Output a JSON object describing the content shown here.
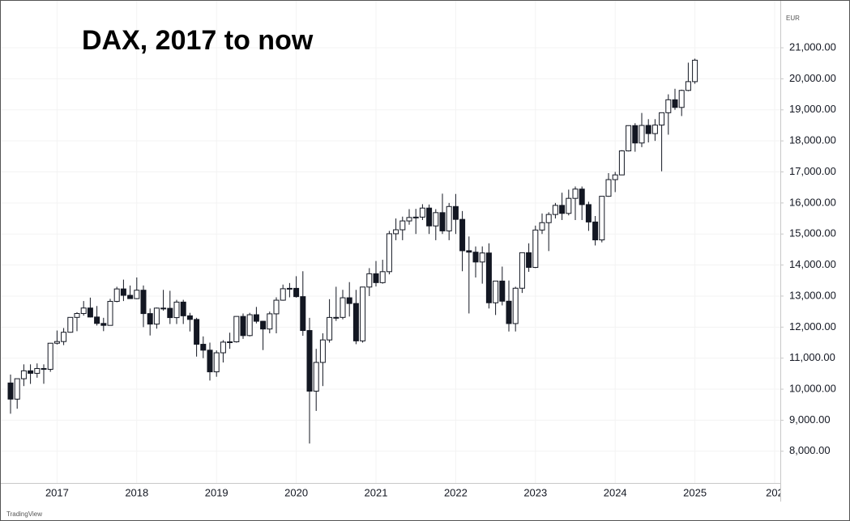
{
  "chart_data": {
    "type": "candlestick",
    "title": "DAX, 2017 to now",
    "y_axis_label": "EUR",
    "watermark": "TradingView",
    "categories": [
      null,
      null,
      null,
      null,
      null,
      null,
      null,
      "2017",
      null,
      null,
      null,
      null,
      null,
      null,
      null,
      null,
      null,
      null,
      null,
      "2018",
      null,
      null,
      null,
      null,
      null,
      null,
      null,
      null,
      null,
      null,
      null,
      "2019",
      null,
      null,
      null,
      null,
      null,
      null,
      null,
      null,
      null,
      null,
      null,
      "2020",
      null,
      null,
      null,
      null,
      null,
      null,
      null,
      null,
      null,
      null,
      null,
      "2021",
      null,
      null,
      null,
      null,
      null,
      null,
      null,
      null,
      null,
      null,
      null,
      "2022",
      null,
      null,
      null,
      null,
      null,
      null,
      null,
      null,
      null,
      null,
      null,
      "2023",
      null,
      null,
      null,
      null,
      null,
      null,
      null,
      null,
      null,
      null,
      null,
      "2024",
      null,
      null,
      null,
      null,
      null,
      null,
      null,
      null,
      null,
      null,
      null,
      "2025",
      null,
      null,
      null,
      null,
      null,
      null,
      null,
      null,
      null,
      null,
      null,
      "202"
    ],
    "open": [
      10200,
      9680,
      10337,
      10592,
      10511,
      10665,
      10640,
      11481,
      11535,
      11834,
      12313,
      12438,
      12615,
      12325,
      12118,
      12056,
      12829,
      13230,
      13024,
      12918,
      13189,
      12436,
      12097,
      12612,
      12605,
      12306,
      12806,
      12364,
      12247,
      11447,
      11257,
      10559,
      11173,
      11516,
      11526,
      12344,
      11727,
      12399,
      12189,
      11939,
      12428,
      12867,
      13236,
      13249,
      12982,
      11890,
      9936,
      10862,
      11587,
      12311,
      12313,
      12945,
      12761,
      11556,
      13291,
      13719,
      13433,
      13786,
      15008,
      15136,
      15421,
      15531,
      15544,
      15835,
      15260,
      15688,
      15100,
      15885,
      15471,
      14461,
      14415,
      14098,
      14388,
      12784,
      13484,
      12835,
      12114,
      13253,
      14397,
      13924,
      15128,
      15365,
      15629,
      15922,
      15664,
      16148,
      16447,
      15947,
      15387,
      14810,
      16215,
      16752,
      16904,
      17678,
      18492,
      17932,
      18498,
      18235,
      18509,
      18907,
      19325,
      19078,
      19626,
      19909,
      null,
      null,
      null,
      null,
      null,
      null,
      null,
      null,
      null,
      null,
      null,
      null
    ],
    "high": [
      10470,
      10340,
      10800,
      10800,
      10830,
      10800,
      11490,
      11890,
      11970,
      12320,
      12480,
      12840,
      12950,
      12680,
      12300,
      12910,
      13300,
      13530,
      13340,
      13600,
      13340,
      12600,
      12630,
      13200,
      13170,
      12880,
      12880,
      12460,
      12300,
      11700,
      11500,
      11250,
      11580,
      11820,
      12350,
      12440,
      12460,
      12650,
      12200,
      12500,
      12960,
      13370,
      13420,
      13640,
      13800,
      12300,
      11300,
      11800,
      12900,
      13300,
      13200,
      13450,
      13200,
      13300,
      13900,
      14130,
      14170,
      15100,
      15500,
      15560,
      15800,
      15810,
      15960,
      15950,
      15800,
      16300,
      16000,
      16290,
      15740,
      14920,
      14600,
      14600,
      14700,
      13400,
      13950,
      13500,
      13300,
      14400,
      14700,
      15270,
      15660,
      15700,
      16000,
      16330,
      16430,
      16530,
      16530,
      16040,
      15580,
      16220,
      16960,
      17000,
      17700,
      18500,
      18570,
      18900,
      18700,
      18700,
      18800,
      19500,
      19680,
      19650,
      20520,
      20650,
      null,
      null,
      null,
      null,
      null,
      null,
      null,
      null,
      null,
      null,
      null,
      null
    ],
    "low": [
      9210,
      9370,
      10100,
      10170,
      10370,
      10175,
      10560,
      11440,
      11420,
      11820,
      11870,
      12370,
      12310,
      12050,
      11870,
      12050,
      12800,
      12840,
      12910,
      12900,
      12000,
      11730,
      11950,
      12530,
      12100,
      12100,
      12100,
      11860,
      11050,
      11000,
      10280,
      10400,
      10860,
      11300,
      11500,
      11620,
      11700,
      12120,
      11260,
      11800,
      11800,
      12850,
      12960,
      12950,
      11720,
      8250,
      9300,
      10100,
      11500,
      12200,
      12250,
      12340,
      11450,
      11500,
      13000,
      13310,
      13400,
      13700,
      14800,
      14800,
      15300,
      15000,
      15450,
      15000,
      14800,
      15000,
      14800,
      15000,
      13800,
      12440,
      13600,
      13400,
      12600,
      12390,
      12700,
      11860,
      11860,
      13100,
      13780,
      13900,
      15000,
      14450,
      15500,
      15450,
      15600,
      15450,
      15450,
      15100,
      14630,
      14730,
      16200,
      16350,
      16900,
      17660,
      17650,
      17800,
      17950,
      18000,
      17020,
      18200,
      19000,
      18800,
      19600,
      19840,
      null,
      null,
      null,
      null,
      null,
      null,
      null,
      null,
      null,
      null,
      null,
      null
    ],
    "close": [
      9680,
      10337,
      10592,
      10511,
      10665,
      10640,
      11481,
      11535,
      11834,
      12313,
      12438,
      12615,
      12325,
      12118,
      12056,
      12829,
      13230,
      13024,
      12918,
      13189,
      12436,
      12097,
      12612,
      12605,
      12306,
      12806,
      12364,
      12247,
      11447,
      11257,
      10559,
      11173,
      11516,
      11526,
      12344,
      11727,
      12399,
      12189,
      11939,
      12428,
      12867,
      13236,
      13249,
      12982,
      11890,
      9936,
      10862,
      11587,
      12311,
      12313,
      12945,
      12761,
      11556,
      13291,
      13719,
      13433,
      13786,
      15008,
      15136,
      15421,
      15531,
      15544,
      15835,
      15260,
      15688,
      15100,
      15885,
      15471,
      14461,
      14415,
      14098,
      14388,
      12784,
      13484,
      12835,
      12114,
      13253,
      14397,
      13924,
      15128,
      15365,
      15629,
      15922,
      15664,
      16148,
      16447,
      15947,
      15387,
      14810,
      16215,
      16752,
      16904,
      17678,
      18492,
      17932,
      18498,
      18235,
      18509,
      18907,
      19325,
      19078,
      19626,
      19909,
      20600,
      null,
      null,
      null,
      null,
      null,
      null,
      null,
      null,
      null,
      null,
      null,
      null
    ],
    "up_color": "#ffffff",
    "down_color": "#131722",
    "outline_color": "#131722",
    "ylim": [
      7030,
      22070
    ],
    "yticks": [
      {
        "value": 21000,
        "label": "21,000.00"
      },
      {
        "value": 20000,
        "label": "20,000.00"
      },
      {
        "value": 19000,
        "label": "19,000.00"
      },
      {
        "value": 18000,
        "label": "18,000.00"
      },
      {
        "value": 17000,
        "label": "17,000.00"
      },
      {
        "value": 16000,
        "label": "16,000.00"
      },
      {
        "value": 15000,
        "label": "15,000.00"
      },
      {
        "value": 14000,
        "label": "14,000.00"
      },
      {
        "value": 13000,
        "label": "13,000.00"
      },
      {
        "value": 12000,
        "label": "12,000.00"
      },
      {
        "value": 11000,
        "label": "11,000.00"
      },
      {
        "value": 10000,
        "label": "10,000.00"
      },
      {
        "value": 9000,
        "label": "9,000.00"
      },
      {
        "value": 8000,
        "label": "8,000.00"
      }
    ],
    "grid": true
  }
}
